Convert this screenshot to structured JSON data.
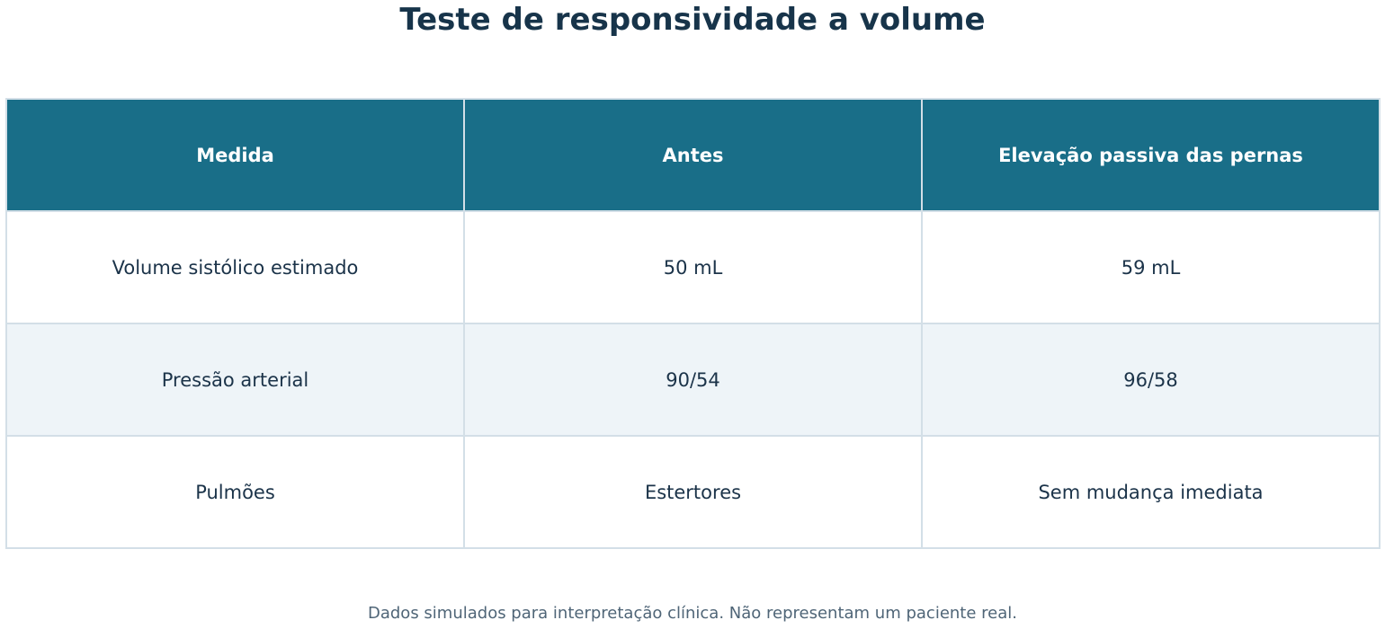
{
  "title": "Teste de responsividade a volume",
  "table": {
    "header": [
      "Medida",
      "Antes",
      "Elevação passiva das pernas"
    ],
    "rows": [
      [
        "Volume sistólico estimado",
        "50 mL",
        "59 mL"
      ],
      [
        "Pressão arterial",
        "90/54",
        "96/58"
      ],
      [
        "Pulmões",
        "Estertores",
        "Sem mudança imediata"
      ]
    ]
  },
  "footnote": "Dados simulados para interpretação clínica. Não representam um paciente real."
}
